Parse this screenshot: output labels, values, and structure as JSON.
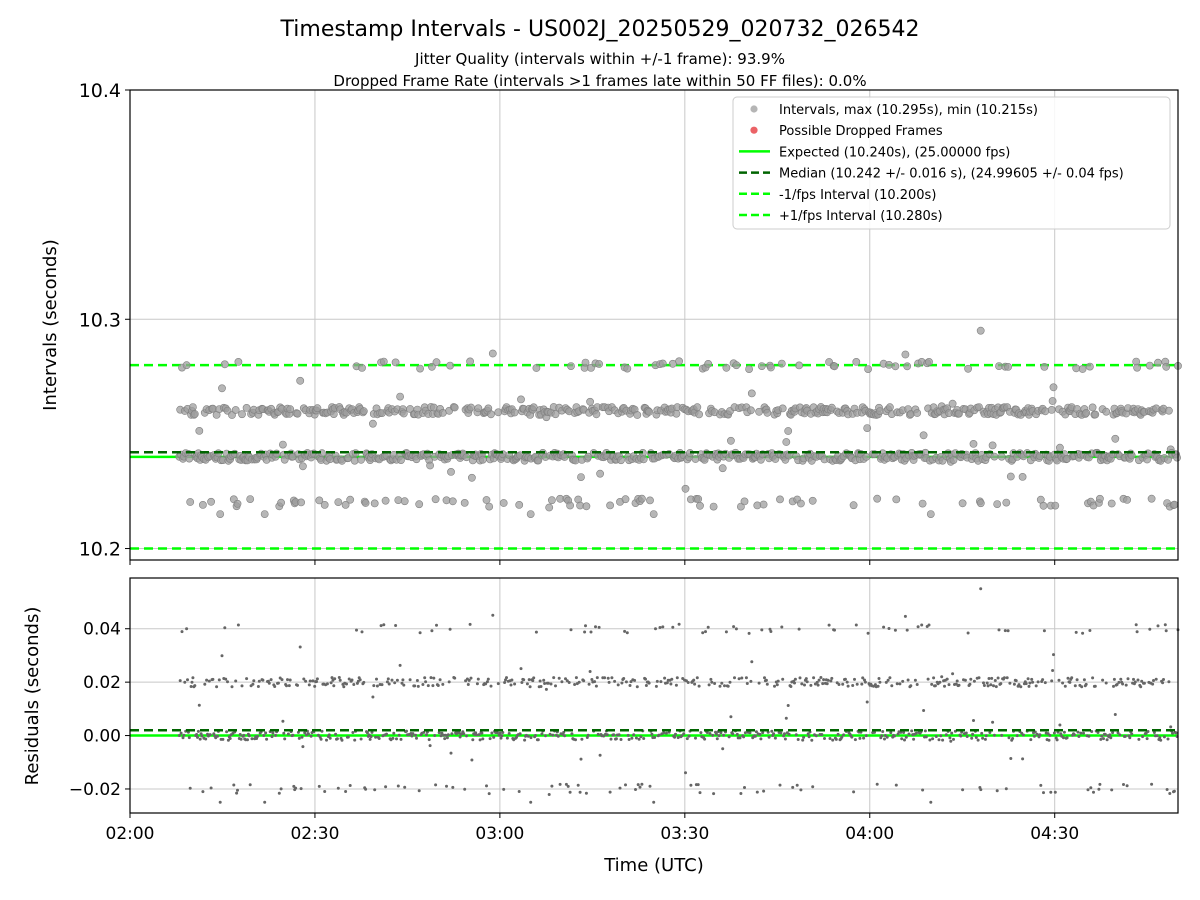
{
  "header": {
    "title": "Timestamp Intervals - US002J_20250529_020732_026542",
    "subtitle_jitter": "Jitter Quality (intervals within +/-1 frame): 93.9%",
    "subtitle_dropped": "Dropped Frame Rate (intervals >1 frames late within 50 FF files): 0.0%"
  },
  "colors": {
    "intervals": "#9e9e9e",
    "dropped": "#e8464b",
    "expected": "#00ff00",
    "median": "#006400",
    "fps_band": "#00ff00",
    "residuals": "#666666",
    "grid": "#c8c8c8"
  },
  "chart_data": [
    {
      "type": "scatter",
      "ylabel": "Intervals (seconds)",
      "ylim": [
        10.195,
        10.4
      ],
      "yticks": [
        10.2,
        10.3,
        10.4
      ],
      "ytick_labels": [
        "10.2",
        "10.3",
        "10.4"
      ],
      "xlim": [
        "02:00",
        "04:50"
      ],
      "xticks": [
        "02:00",
        "02:30",
        "03:00",
        "03:30",
        "04:00",
        "04:30"
      ],
      "grid": true,
      "legend_position": "top-right",
      "legend": [
        {
          "label": "Intervals, max (10.295s), min (10.215s)",
          "kind": "dot",
          "color": "#a8a8a8"
        },
        {
          "label": "Possible Dropped Frames",
          "kind": "dot",
          "color": "#e8464b"
        },
        {
          "label": "Expected (10.240s), (25.00000 fps)",
          "kind": "solid",
          "color": "#00ff00"
        },
        {
          "label": "Median (10.242 +/- 0.016 s), (24.99605 +/- 0.04 fps)",
          "kind": "dashed",
          "color": "#006400"
        },
        {
          "label": "-1/fps Interval (10.200s)",
          "kind": "dashed",
          "color": "#00ff00"
        },
        {
          "label": "+1/fps Interval (10.280s)",
          "kind": "dashed",
          "color": "#00ff00"
        }
      ],
      "reference_lines": {
        "expected": 10.24,
        "median": 10.242,
        "minus_fps": 10.2,
        "plus_fps": 10.28
      },
      "series": [
        {
          "name": "Intervals, max (10.295s), min (10.215s)",
          "x_start": "02:08",
          "x_end": "04:50",
          "count": 1100,
          "levels": [
            10.22,
            10.24,
            10.26,
            10.28
          ],
          "level_weights": [
            0.07,
            0.46,
            0.4,
            0.07
          ],
          "max": 10.295,
          "min": 10.215
        },
        {
          "name": "Possible Dropped Frames",
          "count": 0
        }
      ]
    },
    {
      "type": "scatter",
      "xlabel": "Time (UTC)",
      "ylabel": "Residuals (seconds)",
      "ylim": [
        -0.029,
        0.059
      ],
      "yticks": [
        -0.02,
        0.0,
        0.02,
        0.04
      ],
      "ytick_labels": [
        "−0.02",
        "0.00",
        "0.02",
        "0.04"
      ],
      "xlim": [
        "02:00",
        "04:50"
      ],
      "xticks": [
        "02:00",
        "02:30",
        "03:00",
        "03:30",
        "04:00",
        "04:30"
      ],
      "xtick_labels": [
        "02:00",
        "02:30",
        "03:00",
        "03:30",
        "04:00",
        "04:30"
      ],
      "grid": true,
      "reference_lines": {
        "expected": 0.0,
        "median": 0.002
      },
      "series": [
        {
          "name": "Residuals",
          "levels": [
            -0.02,
            0.0,
            0.02,
            0.04
          ],
          "max": 0.055,
          "min": -0.025
        }
      ]
    }
  ]
}
